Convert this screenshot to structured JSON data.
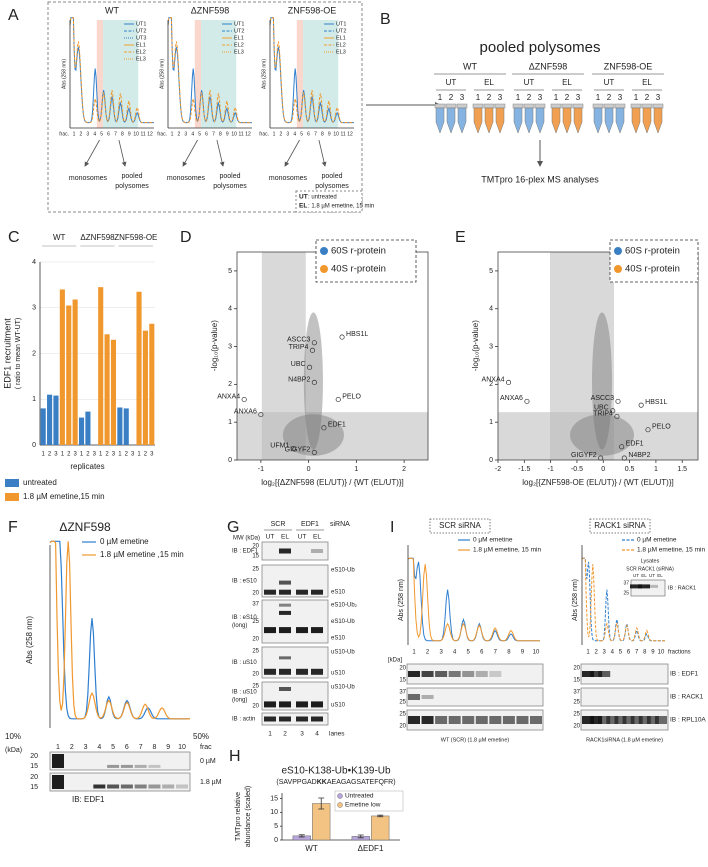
{
  "panel_letters": [
    "A",
    "B",
    "C",
    "D",
    "E",
    "F",
    "G",
    "H",
    "I"
  ],
  "panel_a": {
    "plots": [
      {
        "title": "WT",
        "legend": [
          {
            "name": "UT1",
            "color": "#2f80c8",
            "style": "solid"
          },
          {
            "name": "UT2",
            "color": "#2f80c8",
            "style": "dashed"
          },
          {
            "name": "UT3",
            "color": "#2f80c8",
            "style": "dotted"
          },
          {
            "name": "EL1",
            "color": "#f0a030",
            "style": "solid"
          },
          {
            "name": "EL2",
            "color": "#f0a030",
            "style": "dashed"
          },
          {
            "name": "EL3",
            "color": "#f0a030",
            "style": "dotted"
          }
        ]
      },
      {
        "title": "ΔZNF598",
        "legend": [
          {
            "name": "UT1",
            "color": "#2f80c8",
            "style": "solid"
          },
          {
            "name": "UT2",
            "color": "#2f80c8",
            "style": "dashed"
          },
          {
            "name": "EL1",
            "color": "#f0a030",
            "style": "solid"
          },
          {
            "name": "EL2",
            "color": "#f0a030",
            "style": "dashed"
          },
          {
            "name": "EL3",
            "color": "#f0a030",
            "style": "dotted"
          }
        ]
      },
      {
        "title": "ZNF598-OE",
        "legend": [
          {
            "name": "UT1",
            "color": "#2f80c8",
            "style": "solid"
          },
          {
            "name": "UT2",
            "color": "#2f80c8",
            "style": "dashed"
          },
          {
            "name": "EL1",
            "color": "#f0a030",
            "style": "solid"
          },
          {
            "name": "EL2",
            "color": "#f0a030",
            "style": "dashed"
          },
          {
            "name": "EL3",
            "color": "#f0a030",
            "style": "dotted"
          }
        ]
      }
    ],
    "ylabel": "Abs (258 nm)",
    "frac": "frac.",
    "fractions": [
      "1",
      "2",
      "3",
      "4",
      "5",
      "6",
      "7",
      "8",
      "9",
      "10",
      "11",
      "12"
    ],
    "monosomes": "monosomes",
    "pooled": [
      "pooled",
      "polysomes"
    ],
    "key": [
      {
        "abbr": "UT",
        "text": ": untreated",
        "color": "#2f80c8"
      },
      {
        "abbr": "EL",
        "text": ": 1.8 µM emetine, 15 min",
        "color": "#f0a030"
      }
    ]
  },
  "panel_b": {
    "title": "pooled polysomes",
    "groups": [
      "WT",
      "ΔZNF598",
      "ZNF598-OE"
    ],
    "conditions": [
      {
        "name": "UT",
        "color": "#86b4e2"
      },
      {
        "name": "EL",
        "color": "#f0a050"
      }
    ],
    "replicates": [
      "1",
      "2",
      "3"
    ],
    "analysis": "TMTpro 16-plex MS analyses"
  },
  "panel_f": {
    "title": "ΔZNF598",
    "legend": [
      {
        "name": "0 µM emetine",
        "color": "#2f7fd0"
      },
      {
        "name": "1.8 µM emetine ,15 min",
        "color": "#f0982e"
      }
    ],
    "ylabel": "Abs (258 nm)",
    "gradient": [
      "10%",
      "50%"
    ],
    "kda": "(kDa)",
    "fractions": [
      "1",
      "2",
      "3",
      "4",
      "5",
      "6",
      "7",
      "8",
      "9",
      "10"
    ],
    "frac": "frac",
    "markers": [
      "20",
      "15"
    ],
    "blots": [
      "0 µM",
      "1.8 µM"
    ],
    "antibody": "IB: EDF1"
  },
  "panel_g": {
    "siRNA": [
      "SCR",
      "EDF1"
    ],
    "siRNA_label": "siRNA",
    "mw": "MW (kDa)",
    "treatments": [
      "UT",
      "EL",
      "UT",
      "EL"
    ],
    "blots": [
      {
        "label": [
          "IB : EDF1"
        ],
        "markers": [
          "20",
          "15"
        ]
      },
      {
        "label": [
          "IB : eS10"
        ],
        "markers": [
          "25",
          "20"
        ],
        "band_labels": [
          "eS10-Ub",
          "eS10"
        ]
      },
      {
        "label": [
          "IB : eS10",
          "(long)"
        ],
        "markers": [
          "37",
          "25",
          "20"
        ],
        "band_labels": [
          "eS10-Ub₂",
          "eS10-Ub",
          "eS10"
        ]
      },
      {
        "label": [
          "IB : uS10"
        ],
        "markers": [
          "25",
          "20"
        ],
        "band_labels": [
          "uS10-Ub",
          "uS10"
        ]
      },
      {
        "label": [
          "IB : uS10",
          "(long)"
        ],
        "markers": [
          "25",
          "20"
        ],
        "band_labels": [
          "uS10-Ub",
          "uS10"
        ]
      },
      {
        "label": [
          "IB : actin"
        ]
      }
    ],
    "lane_numbers": [
      "1",
      "2",
      "3",
      "4"
    ],
    "lanes": "lanes"
  },
  "panel_i": {
    "boxes": [
      "SCR siRNA",
      "RACK1 siRNA"
    ],
    "legend": [
      {
        "name": "0 µM emetine",
        "color": "#2f7fd0"
      },
      {
        "name": "1.8 µM emetine, 15 min",
        "color": "#f0982e"
      }
    ],
    "ylabel": "Abs (258 nm)",
    "fractions": [
      "1",
      "2",
      "3",
      "4",
      "5",
      "6",
      "7",
      "8",
      "9",
      "10"
    ],
    "fractions_label": "fractions",
    "kda": "[kDa]",
    "blots": [
      {
        "label": "IB : EDF1",
        "markers": [
          "20",
          "15"
        ]
      },
      {
        "label": "IB : RACK1",
        "markers": [
          "37",
          "25"
        ]
      },
      {
        "label": "IB : RPL10A",
        "markers": [
          "25",
          "20"
        ]
      }
    ],
    "captions": [
      "WT (SCR) (1.8 µM emetine)",
      "RACK1siRNA (1.8 µM emetine)"
    ],
    "inset": {
      "title": "Lysates",
      "siRNA": "SCR  RACK1 (siRNA)",
      "lanes": [
        "UT",
        "EL",
        "UT",
        "EL"
      ],
      "markers": [
        "37",
        "25"
      ],
      "label": "IB : RACK1"
    }
  },
  "chart_data": [
    {
      "type": "bar",
      "ylabel": [
        "EDF1 recruitment",
        "( ratio to mean WT-UT)"
      ],
      "xlabel": "replicates",
      "groups": [
        "WT",
        "ΔZNF598",
        "ZNF598-OE"
      ],
      "categories": [
        "1",
        "2",
        "3",
        "1",
        "2",
        "3",
        "1",
        "2",
        "3",
        "1",
        "2",
        "3",
        "1",
        "2",
        "3",
        "1",
        "2",
        "3"
      ],
      "series": [
        {
          "name": "untreated",
          "color": "#3a7fc4",
          "values": [
            0.8,
            1.1,
            1.08,
            null,
            null,
            null,
            0.6,
            0.73,
            null,
            null,
            null,
            null,
            0.82,
            0.8,
            null,
            null,
            null,
            null
          ]
        },
        {
          "name": "1.8 µM emetine,15 min",
          "color": "#f0982e",
          "values": [
            null,
            null,
            null,
            3.4,
            3.05,
            3.18,
            null,
            null,
            null,
            3.45,
            2.42,
            2.3,
            null,
            null,
            null,
            3.35,
            2.5,
            2.65
          ]
        }
      ],
      "ylim": [
        0,
        4
      ],
      "yticks": [
        0,
        1,
        2,
        3,
        4
      ],
      "grid": true
    },
    {
      "type": "scatter",
      "xlabel": "log₂[{ΔZNF598 (EL/UT)} / {WT (EL/UT)}]",
      "ylabel": "-log₁₀(p-value)",
      "legend": [
        {
          "name": "60S r-protein",
          "color": "#3a7fc4"
        },
        {
          "name": "40S r-protein",
          "color": "#f0982e"
        }
      ],
      "labels": [
        "ASCC3",
        "TRIP4",
        "UBC",
        "N4BP2",
        "HBS1L",
        "ANXA4",
        "ANXA6",
        "PELO",
        "EDF1",
        "UFM1",
        "GIGYF2"
      ],
      "x": [
        0.12,
        0.08,
        0.02,
        0.12,
        0.7,
        -1.35,
        -1.0,
        0.62,
        0.32,
        -0.32,
        0.12
      ],
      "y": [
        3.1,
        2.9,
        2.45,
        2.05,
        3.25,
        1.6,
        1.2,
        1.6,
        0.85,
        0.3,
        0.2
      ],
      "xlim": [
        -1.5,
        2.5
      ],
      "xticks": [
        -1,
        0,
        1,
        2
      ],
      "ylim": [
        0,
        5.5
      ],
      "yticks": [
        0,
        1,
        2,
        3,
        4,
        5
      ]
    },
    {
      "type": "scatter",
      "xlabel": "log₂[{ZNF598-OE (EL/UT)} / {WT (EL/UT)}]",
      "ylabel": "-log₁₀(p-value)",
      "legend": [
        {
          "name": "60S r-protein",
          "color": "#3a7fc4"
        },
        {
          "name": "40S r-protein",
          "color": "#f0982e"
        }
      ],
      "labels": [
        "ANXA4",
        "ANXA6",
        "ASCC3",
        "UBC",
        "TRIP4",
        "HBS1L",
        "PELO",
        "EDF1",
        "GIGYF2",
        "N4BP2"
      ],
      "x": [
        -1.8,
        -1.45,
        0.28,
        0.18,
        0.26,
        0.72,
        0.85,
        0.35,
        -0.05,
        0.4
      ],
      "y": [
        2.05,
        1.55,
        1.55,
        1.3,
        1.15,
        1.45,
        0.8,
        0.35,
        0.05,
        0.05
      ],
      "xlim": [
        -2,
        1.8
      ],
      "xticks": [
        -2,
        -1.5,
        -1,
        -0.5,
        0,
        0.5,
        1,
        1.5
      ],
      "ylim": [
        0,
        5.5
      ],
      "yticks": [
        0,
        1,
        2,
        3,
        4,
        5
      ]
    },
    {
      "type": "bar",
      "title": "eS10-K138-Ub•K139-Ub",
      "subtitle": [
        "(SAVPPGAD",
        "KK",
        "AEAGAGSATEFQFR)"
      ],
      "ylabel": [
        "TMTpro relative",
        "abundance (scaled)"
      ],
      "categories": [
        "WT",
        "ΔEDF1"
      ],
      "series": [
        {
          "name": "Untreated",
          "color": "#b9a6dc",
          "values": [
            1.5,
            1.3
          ],
          "errors": [
            0.4,
            0.5
          ]
        },
        {
          "name": "Emetine low",
          "color": "#f2c383",
          "values": [
            13.2,
            8.7
          ],
          "errors": [
            2.0,
            0.3
          ]
        }
      ],
      "ylim": [
        0,
        17
      ],
      "yticks": [
        0,
        5,
        10,
        15
      ]
    }
  ]
}
